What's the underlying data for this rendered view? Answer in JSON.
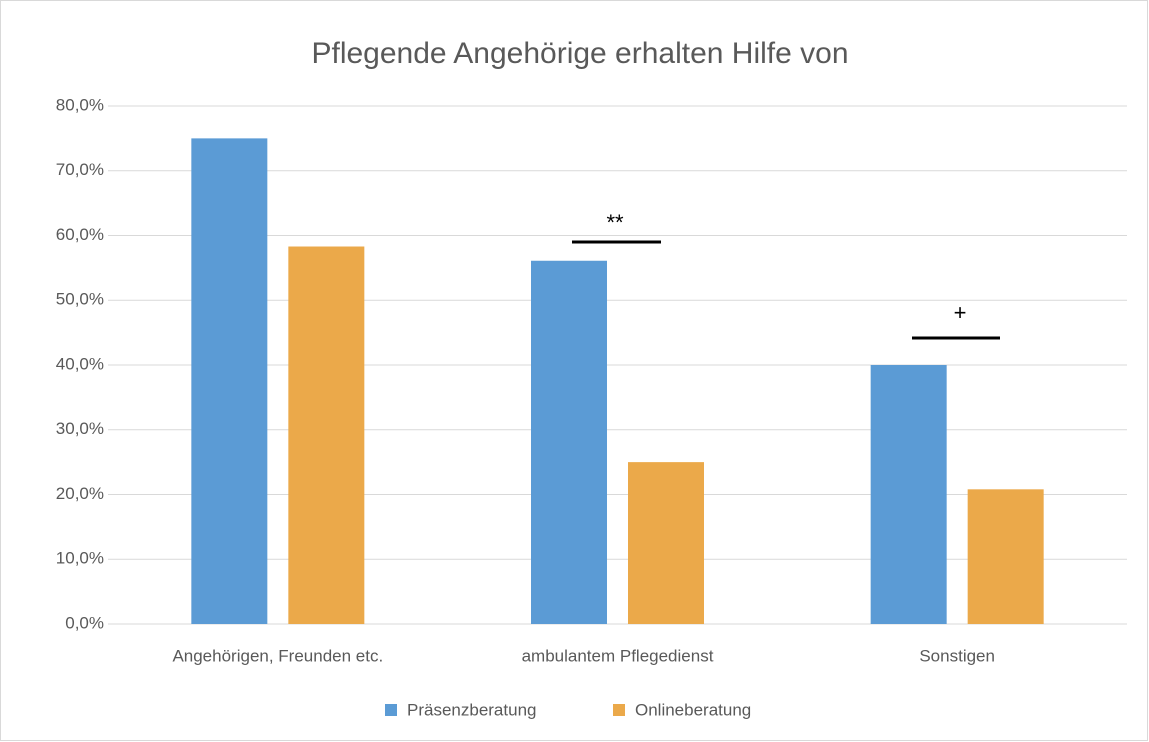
{
  "chart_data": {
    "type": "bar",
    "title": "Pflegende Angehörige erhalten Hilfe von",
    "categories": [
      "Angehörigen, Freunden etc.",
      "ambulantem Pflegedienst",
      "Sonstigen"
    ],
    "series": [
      {
        "name": "Präsenzberatung",
        "color": "#5b9bd5",
        "values": [
          75.0,
          56.1,
          40.0
        ]
      },
      {
        "name": "Onlineberatung",
        "color": "#eba94a",
        "values": [
          58.3,
          25.0,
          20.8
        ]
      }
    ],
    "ylim": [
      0,
      80
    ],
    "yticks": [
      {
        "value": 0,
        "label": "0,0%"
      },
      {
        "value": 10,
        "label": "10,0%"
      },
      {
        "value": 20,
        "label": "20,0%"
      },
      {
        "value": 30,
        "label": "30,0%"
      },
      {
        "value": 40,
        "label": "40,0%"
      },
      {
        "value": 50,
        "label": "50,0%"
      },
      {
        "value": 60,
        "label": "60,0%"
      },
      {
        "value": 70,
        "label": "70,0%"
      },
      {
        "value": 80,
        "label": "80,0%"
      }
    ],
    "grid": true,
    "legend": "bottom",
    "annotations": [
      "**",
      "+"
    ]
  }
}
